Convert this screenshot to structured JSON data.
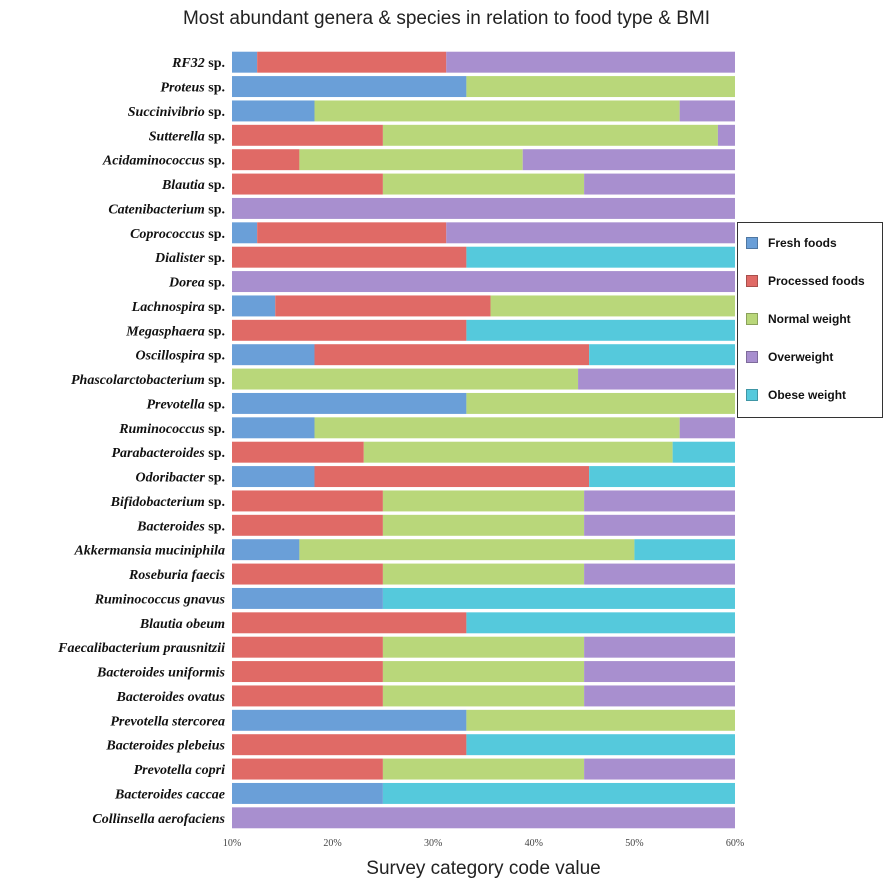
{
  "chart_data": {
    "type": "bar",
    "orientation": "horizontal",
    "stacked": true,
    "title": "Most abundant genera & species in relation to food type & BMI",
    "xlabel": "Survey category code value",
    "ylabel": "",
    "xlim": [
      0.1,
      0.6
    ],
    "x_tick_labels": [
      "10%",
      "20%",
      "30%",
      "40%",
      "50%",
      "60%"
    ],
    "grid": false,
    "legend_position": "right",
    "series_colors": {
      "Fresh foods": "#6a9fd8",
      "Processed foods": "#e06a66",
      "Normal weight": "#b9d77a",
      "Overweight": "#a88fcf",
      "Obese weight": "#55c9dc"
    },
    "series": [
      {
        "name": "Fresh foods"
      },
      {
        "name": "Processed foods"
      },
      {
        "name": "Normal weight"
      },
      {
        "name": "Overweight"
      },
      {
        "name": "Obese weight"
      }
    ],
    "categories": [
      {
        "label": "RF32",
        "suffix": " sp.",
        "segments": [
          [
            "Fresh foods",
            0.125
          ],
          [
            "Processed foods",
            0.313
          ],
          [
            "Overweight",
            0.6
          ]
        ]
      },
      {
        "label": "Proteus",
        "suffix": " sp.",
        "segments": [
          [
            "Fresh foods",
            0.333
          ],
          [
            "Normal weight",
            0.6
          ]
        ]
      },
      {
        "label": "Succinivibrio",
        "suffix": " sp.",
        "segments": [
          [
            "Fresh foods",
            0.182
          ],
          [
            "Normal weight",
            0.545
          ],
          [
            "Overweight",
            0.6
          ]
        ]
      },
      {
        "label": "Sutterella",
        "suffix": " sp.",
        "segments": [
          [
            "Processed foods",
            0.25
          ],
          [
            "Normal weight",
            0.583
          ],
          [
            "Overweight",
            0.6
          ]
        ]
      },
      {
        "label": "Acidaminococcus",
        "suffix": " sp.",
        "segments": [
          [
            "Processed foods",
            0.167
          ],
          [
            "Normal weight",
            0.389
          ],
          [
            "Overweight",
            0.6
          ]
        ]
      },
      {
        "label": "Blautia",
        "suffix": " sp.",
        "segments": [
          [
            "Processed foods",
            0.25
          ],
          [
            "Normal weight",
            0.45
          ],
          [
            "Overweight",
            0.6
          ]
        ]
      },
      {
        "label": "Catenibacterium",
        "suffix": " sp.",
        "segments": [
          [
            "Overweight",
            0.6
          ]
        ]
      },
      {
        "label": "Coprococcus",
        "suffix": " sp.",
        "segments": [
          [
            "Fresh foods",
            0.125
          ],
          [
            "Processed foods",
            0.313
          ],
          [
            "Overweight",
            0.6
          ]
        ]
      },
      {
        "label": "Dialister",
        "suffix": " sp.",
        "segments": [
          [
            "Processed foods",
            0.333
          ],
          [
            "Obese weight",
            0.6
          ]
        ]
      },
      {
        "label": "Dorea",
        "suffix": " sp.",
        "segments": [
          [
            "Overweight",
            0.6
          ]
        ]
      },
      {
        "label": "Lachnospira",
        "suffix": " sp.",
        "segments": [
          [
            "Fresh foods",
            0.143
          ],
          [
            "Processed foods",
            0.357
          ],
          [
            "Normal weight",
            0.6
          ]
        ]
      },
      {
        "label": "Megasphaera",
        "suffix": " sp.",
        "segments": [
          [
            "Processed foods",
            0.333
          ],
          [
            "Obese weight",
            0.6
          ]
        ]
      },
      {
        "label": "Oscillospira",
        "suffix": " sp.",
        "segments": [
          [
            "Fresh foods",
            0.182
          ],
          [
            "Processed foods",
            0.455
          ],
          [
            "Obese weight",
            0.6
          ]
        ]
      },
      {
        "label": "Phascolarctobacterium",
        "suffix": " sp.",
        "segments": [
          [
            "Normal weight",
            0.444
          ],
          [
            "Overweight",
            0.6
          ]
        ]
      },
      {
        "label": "Prevotella",
        "suffix": " sp.",
        "segments": [
          [
            "Fresh foods",
            0.333
          ],
          [
            "Normal weight",
            0.6
          ]
        ]
      },
      {
        "label": "Ruminococcus",
        "suffix": " sp.",
        "segments": [
          [
            "Fresh foods",
            0.182
          ],
          [
            "Normal weight",
            0.545
          ],
          [
            "Overweight",
            0.6
          ]
        ]
      },
      {
        "label": "Parabacteroides",
        "suffix": " sp.",
        "segments": [
          [
            "Processed foods",
            0.231
          ],
          [
            "Normal weight",
            0.538
          ],
          [
            "Obese weight",
            0.6
          ]
        ]
      },
      {
        "label": "Odoribacter",
        "suffix": " sp.",
        "segments": [
          [
            "Fresh foods",
            0.182
          ],
          [
            "Processed foods",
            0.455
          ],
          [
            "Obese weight",
            0.6
          ]
        ]
      },
      {
        "label": "Bifidobacterium",
        "suffix": " sp.",
        "segments": [
          [
            "Processed foods",
            0.25
          ],
          [
            "Normal weight",
            0.45
          ],
          [
            "Overweight",
            0.6
          ]
        ]
      },
      {
        "label": "Bacteroides",
        "suffix": " sp.",
        "segments": [
          [
            "Processed foods",
            0.25
          ],
          [
            "Normal weight",
            0.45
          ],
          [
            "Overweight",
            0.6
          ]
        ]
      },
      {
        "label": "Akkermansia muciniphila",
        "suffix": "",
        "segments": [
          [
            "Fresh foods",
            0.167
          ],
          [
            "Normal weight",
            0.5
          ],
          [
            "Obese weight",
            0.6
          ]
        ]
      },
      {
        "label": "Roseburia faecis",
        "suffix": "",
        "segments": [
          [
            "Processed foods",
            0.25
          ],
          [
            "Normal weight",
            0.45
          ],
          [
            "Overweight",
            0.6
          ]
        ]
      },
      {
        "label": "Ruminococcus gnavus",
        "suffix": "",
        "segments": [
          [
            "Fresh foods",
            0.25
          ],
          [
            "Obese weight",
            0.6
          ]
        ]
      },
      {
        "label": "Blautia obeum",
        "suffix": "",
        "segments": [
          [
            "Processed foods",
            0.333
          ],
          [
            "Obese weight",
            0.6
          ]
        ]
      },
      {
        "label": "Faecalibacterium prausnitzii",
        "suffix": "",
        "segments": [
          [
            "Processed foods",
            0.25
          ],
          [
            "Normal weight",
            0.45
          ],
          [
            "Overweight",
            0.6
          ]
        ]
      },
      {
        "label": "Bacteroides uniformis",
        "suffix": "",
        "segments": [
          [
            "Processed foods",
            0.25
          ],
          [
            "Normal weight",
            0.45
          ],
          [
            "Overweight",
            0.6
          ]
        ]
      },
      {
        "label": "Bacteroides ovatus",
        "suffix": "",
        "segments": [
          [
            "Processed foods",
            0.25
          ],
          [
            "Normal weight",
            0.45
          ],
          [
            "Overweight",
            0.6
          ]
        ]
      },
      {
        "label": "Prevotella stercorea",
        "suffix": "",
        "segments": [
          [
            "Fresh foods",
            0.333
          ],
          [
            "Normal weight",
            0.6
          ]
        ]
      },
      {
        "label": "Bacteroides plebeius",
        "suffix": "",
        "segments": [
          [
            "Processed foods",
            0.333
          ],
          [
            "Obese weight",
            0.6
          ]
        ]
      },
      {
        "label": "Prevotella copri",
        "suffix": "",
        "segments": [
          [
            "Processed foods",
            0.25
          ],
          [
            "Normal weight",
            0.45
          ],
          [
            "Overweight",
            0.6
          ]
        ]
      },
      {
        "label": "Bacteroides caccae",
        "suffix": "",
        "segments": [
          [
            "Fresh foods",
            0.25
          ],
          [
            "Obese weight",
            0.6
          ]
        ]
      },
      {
        "label": "Collinsella aerofaciens",
        "suffix": "",
        "segments": [
          [
            "Overweight",
            0.6
          ]
        ]
      }
    ]
  }
}
